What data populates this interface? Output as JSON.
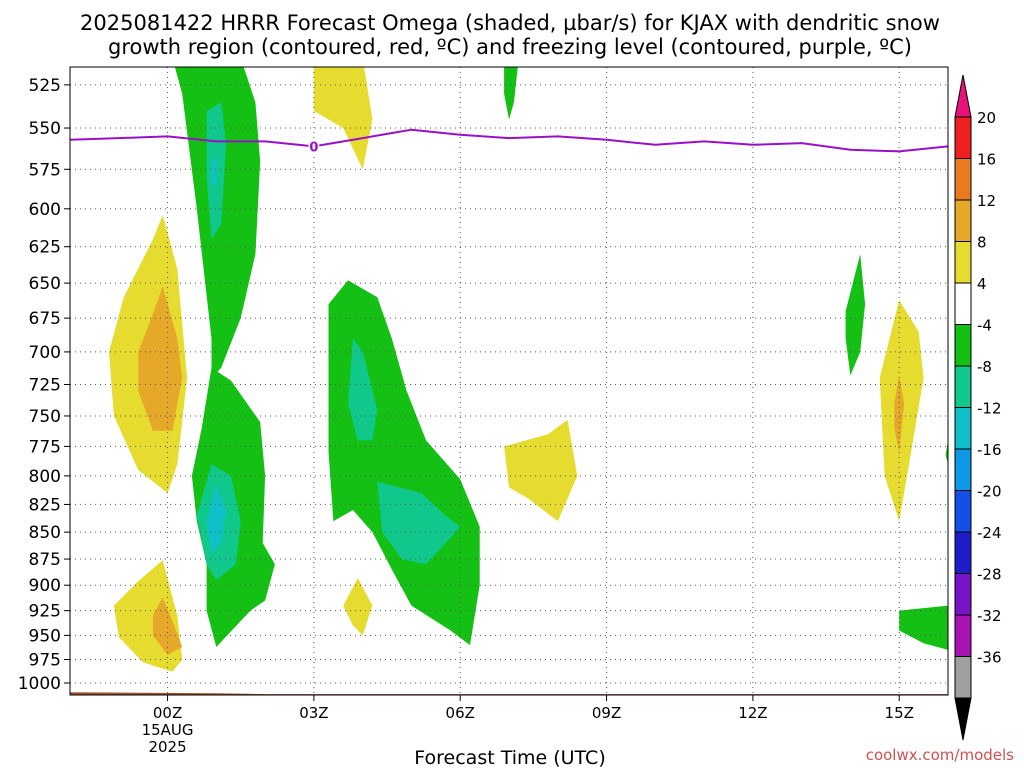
{
  "chart_data": {
    "type": "heatmap",
    "title_line1": "2025081422 HRRR Forecast Omega (shaded, µbar/s) for KJAX with dendritic snow",
    "title_line2": "growth region (contoured, red, ºC) and freezing level (contoured, purple, ºC)",
    "xlabel": "Forecast Time (UTC)",
    "x_ticks": [
      {
        "hour": 0,
        "label": "00Z",
        "sub1": "15AUG",
        "sub2": "2025"
      },
      {
        "hour": 3,
        "label": "03Z"
      },
      {
        "hour": 6,
        "label": "06Z"
      },
      {
        "hour": 9,
        "label": "09Z"
      },
      {
        "hour": 12,
        "label": "12Z"
      },
      {
        "hour": 15,
        "label": "15Z"
      }
    ],
    "xlim": [
      -2,
      16
    ],
    "ylabel": "",
    "y_scale": "log-pressure",
    "y_ticks": [
      525,
      550,
      575,
      600,
      625,
      650,
      675,
      700,
      725,
      750,
      775,
      800,
      825,
      850,
      875,
      900,
      925,
      950,
      975,
      1000
    ],
    "ylim": [
      1013,
      515
    ],
    "grid": true,
    "colorbar": {
      "labels": [
        "20",
        "16",
        "12",
        "8",
        "4",
        "-4",
        "-8",
        "-12",
        "-16",
        "-20",
        "-24",
        "-28",
        "-32",
        "-36"
      ],
      "colors": [
        "#ee2020",
        "#ea7a20",
        "#e6a828",
        "#e6dc30",
        "#ffffff",
        "#14c014",
        "#10c88c",
        "#10c0c8",
        "#1098e8",
        "#1450e6",
        "#1e1ec8",
        "#7814c8",
        "#a814b4",
        "#a0a0a0"
      ],
      "top_arrow_color": "#e8147a",
      "bottom_arrow_color": "#000000"
    },
    "colors": {
      "freezing_line": "#9a10c8",
      "terrain": "#a0522d",
      "dashed_grid": "#555555"
    },
    "freezing_level": {
      "label": "0",
      "points": [
        [
          -2,
          557
        ],
        [
          -1,
          556
        ],
        [
          0,
          555
        ],
        [
          1,
          558
        ],
        [
          2,
          558
        ],
        [
          3,
          561
        ],
        [
          4,
          556
        ],
        [
          5,
          551
        ],
        [
          6,
          554
        ],
        [
          7,
          556
        ],
        [
          8,
          555
        ],
        [
          9,
          557
        ],
        [
          10,
          560
        ],
        [
          11,
          558
        ],
        [
          12,
          560
        ],
        [
          13,
          559
        ],
        [
          14,
          563
        ],
        [
          15,
          564
        ],
        [
          16,
          561
        ]
      ]
    },
    "surface_pressure": [
      [
        -2,
        1010
      ],
      [
        1,
        1011
      ],
      [
        2,
        1012
      ],
      [
        6,
        1012
      ],
      [
        16,
        1012
      ]
    ],
    "regions": [
      {
        "level": 4,
        "points": [
          [
            -1.2,
            700
          ],
          [
            -0.9,
            660
          ],
          [
            -0.3,
            620
          ],
          [
            -0.1,
            604
          ],
          [
            0.2,
            640
          ],
          [
            0.4,
            720
          ],
          [
            0.2,
            790
          ],
          [
            0,
            815
          ],
          [
            -0.6,
            795
          ],
          [
            -1.1,
            750
          ]
        ]
      },
      {
        "level": 8,
        "points": [
          [
            -0.6,
            700
          ],
          [
            -0.3,
            672
          ],
          [
            -0.1,
            652
          ],
          [
            0.2,
            690
          ],
          [
            0.3,
            720
          ],
          [
            0.1,
            762
          ],
          [
            -0.3,
            762
          ],
          [
            -0.6,
            730
          ]
        ]
      },
      {
        "level": 4,
        "points": [
          [
            -1.1,
            920
          ],
          [
            -0.6,
            896
          ],
          [
            -0.1,
            876
          ],
          [
            0.2,
            930
          ],
          [
            0.3,
            975
          ],
          [
            0.1,
            988
          ],
          [
            -0.5,
            978
          ],
          [
            -1.0,
            952
          ]
        ]
      },
      {
        "level": 8,
        "points": [
          [
            -0.3,
            930
          ],
          [
            -0.1,
            912
          ],
          [
            0.1,
            935
          ],
          [
            0.3,
            962
          ],
          [
            0.0,
            970
          ],
          [
            -0.3,
            950
          ]
        ]
      },
      {
        "level": -4,
        "points": [
          [
            0.1,
            510
          ],
          [
            1.5,
            510
          ],
          [
            1.8,
            535
          ],
          [
            1.9,
            570
          ],
          [
            1.8,
            630
          ],
          [
            1.5,
            675
          ],
          [
            1.1,
            712
          ],
          [
            0.9,
            720
          ],
          [
            0.9,
            690
          ],
          [
            0.6,
            600
          ],
          [
            0.3,
            530
          ]
        ]
      },
      {
        "level": -8,
        "points": [
          [
            0.8,
            540
          ],
          [
            1.1,
            535
          ],
          [
            1.2,
            560
          ],
          [
            1.1,
            610
          ],
          [
            0.9,
            620
          ],
          [
            0.8,
            580
          ]
        ]
      },
      {
        "level": -12,
        "points": [
          [
            0.9,
            570
          ],
          [
            1.0,
            568
          ],
          [
            1.0,
            585
          ],
          [
            0.9,
            585
          ]
        ]
      },
      {
        "level": -4,
        "points": [
          [
            0.9,
            712
          ],
          [
            1.3,
            722
          ],
          [
            1.9,
            755
          ],
          [
            2.0,
            800
          ],
          [
            1.95,
            860
          ],
          [
            2.2,
            880
          ],
          [
            2.0,
            915
          ],
          [
            1.7,
            925
          ],
          [
            1.0,
            962
          ],
          [
            0.8,
            925
          ],
          [
            0.8,
            880
          ],
          [
            0.6,
            840
          ],
          [
            0.5,
            800
          ],
          [
            0.7,
            760
          ]
        ]
      },
      {
        "level": -8,
        "points": [
          [
            0.6,
            835
          ],
          [
            0.9,
            790
          ],
          [
            1.3,
            800
          ],
          [
            1.5,
            840
          ],
          [
            1.4,
            880
          ],
          [
            1.0,
            895
          ],
          [
            0.8,
            880
          ]
        ]
      },
      {
        "level": -12,
        "points": [
          [
            0.8,
            840
          ],
          [
            1.0,
            808
          ],
          [
            1.2,
            830
          ],
          [
            1.1,
            860
          ],
          [
            0.9,
            870
          ]
        ]
      },
      {
        "level": -4,
        "points": [
          [
            3.3,
            665
          ],
          [
            3.7,
            648
          ],
          [
            4.3,
            660
          ],
          [
            4.6,
            690
          ],
          [
            4.9,
            730
          ],
          [
            5.3,
            770
          ],
          [
            6.0,
            803
          ],
          [
            6.4,
            845
          ],
          [
            6.4,
            900
          ],
          [
            6.2,
            960
          ],
          [
            5.8,
            945
          ],
          [
            5.0,
            920
          ],
          [
            4.6,
            885
          ],
          [
            4.2,
            850
          ],
          [
            3.8,
            830
          ],
          [
            3.4,
            840
          ],
          [
            3.3,
            780
          ],
          [
            3.3,
            710
          ]
        ]
      },
      {
        "level": -8,
        "points": [
          [
            3.8,
            690
          ],
          [
            4.0,
            700
          ],
          [
            4.3,
            745
          ],
          [
            4.2,
            770
          ],
          [
            3.9,
            770
          ],
          [
            3.7,
            740
          ]
        ]
      },
      {
        "level": -8,
        "points": [
          [
            4.3,
            805
          ],
          [
            5.2,
            815
          ],
          [
            5.7,
            835
          ],
          [
            6.0,
            845
          ],
          [
            5.7,
            860
          ],
          [
            5.3,
            880
          ],
          [
            4.8,
            875
          ],
          [
            4.4,
            850
          ]
        ]
      },
      {
        "level": -4,
        "points": [
          [
            6.9,
            510
          ],
          [
            7.2,
            510
          ],
          [
            7.1,
            535
          ],
          [
            7.0,
            545
          ],
          [
            6.9,
            530
          ]
        ]
      },
      {
        "level": 4,
        "points": [
          [
            3.0,
            510
          ],
          [
            4.0,
            510
          ],
          [
            4.2,
            545
          ],
          [
            4.0,
            575
          ],
          [
            3.6,
            550
          ],
          [
            3.0,
            540
          ]
        ]
      },
      {
        "level": 4,
        "points": [
          [
            3.6,
            920
          ],
          [
            3.9,
            893
          ],
          [
            4.2,
            920
          ],
          [
            4.0,
            950
          ],
          [
            3.8,
            940
          ]
        ]
      },
      {
        "level": 4,
        "points": [
          [
            6.9,
            775
          ],
          [
            7.8,
            765
          ],
          [
            8.2,
            753
          ],
          [
            8.4,
            800
          ],
          [
            8.0,
            840
          ],
          [
            7.4,
            820
          ],
          [
            7.0,
            810
          ]
        ]
      },
      {
        "level": -4,
        "points": [
          [
            13.9,
            670
          ],
          [
            14.2,
            630
          ],
          [
            14.3,
            665
          ],
          [
            14.2,
            700
          ],
          [
            14.0,
            718
          ],
          [
            13.9,
            690
          ]
        ]
      },
      {
        "level": 4,
        "points": [
          [
            14.6,
            720
          ],
          [
            15.0,
            662
          ],
          [
            15.4,
            685
          ],
          [
            15.5,
            720
          ],
          [
            15.2,
            790
          ],
          [
            15.0,
            840
          ],
          [
            14.7,
            800
          ]
        ]
      },
      {
        "level": 8,
        "points": [
          [
            14.9,
            740
          ],
          [
            15.0,
            718
          ],
          [
            15.1,
            740
          ],
          [
            15.0,
            780
          ],
          [
            14.9,
            760
          ]
        ]
      },
      {
        "level": -4,
        "points": [
          [
            16.0,
            770
          ],
          [
            16.0,
            790
          ],
          [
            15.95,
            782
          ]
        ]
      },
      {
        "level": -4,
        "points": [
          [
            15.0,
            925
          ],
          [
            16.0,
            920
          ],
          [
            16.0,
            965
          ],
          [
            15.5,
            958
          ],
          [
            15.0,
            945
          ]
        ]
      }
    ]
  },
  "credit": "coolwx.com/models"
}
